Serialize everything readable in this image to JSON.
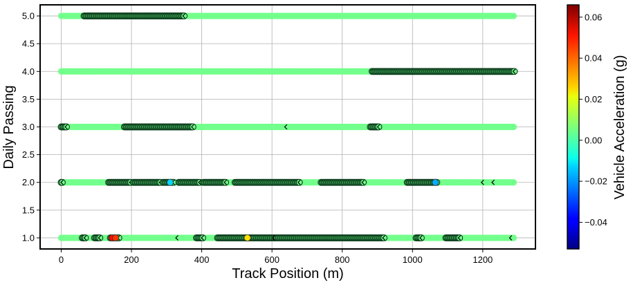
{
  "chart_data": {
    "type": "scatter",
    "xlabel": "Track Position (m)",
    "ylabel": "Daily Passing",
    "xlim": [
      -60,
      1350
    ],
    "ylim": [
      0.8,
      5.2
    ],
    "x_ticks": [
      0,
      200,
      400,
      600,
      800,
      1000,
      1200
    ],
    "y_ticks": [
      1.0,
      1.5,
      2.0,
      2.5,
      3.0,
      3.5,
      4.0,
      4.5,
      5.0
    ],
    "x_tick_labels": [
      "0",
      "200",
      "400",
      "600",
      "800",
      "1000",
      "1200"
    ],
    "y_tick_labels": [
      "1.0",
      "1.5",
      "2.0",
      "2.5",
      "3.0",
      "3.5",
      "4.0",
      "4.5",
      "5.0"
    ],
    "grid": true,
    "x_range": [
      0,
      1290
    ],
    "base_acceleration": 0.005,
    "colorbar": {
      "label": "Vehicle Acceleration (g)",
      "colormap": "jet",
      "range": [
        -0.053,
        0.066
      ],
      "ticks": [
        -0.04,
        -0.02,
        0.0,
        0.02,
        0.04,
        0.06
      ],
      "tick_labels": [
        "−0.04",
        "−0.02",
        "0.00",
        "0.02",
        "0.04",
        "0.06"
      ]
    },
    "series": [
      {
        "y": 5.0,
        "dense_segments": [
          [
            65,
            350
          ]
        ],
        "markers": [],
        "highlights": []
      },
      {
        "y": 4.0,
        "dense_segments": [
          [
            885,
            1290
          ]
        ],
        "markers": [],
        "highlights": []
      },
      {
        "y": 3.0,
        "dense_segments": [
          [
            0,
            15
          ],
          [
            180,
            375
          ],
          [
            880,
            905
          ]
        ],
        "markers": [
          640
        ],
        "highlights": []
      },
      {
        "y": 2.0,
        "dense_segments": [
          [
            0,
            5
          ],
          [
            135,
            200
          ],
          [
            205,
            285
          ],
          [
            290,
            320
          ],
          [
            335,
            395
          ],
          [
            405,
            470
          ],
          [
            495,
            680
          ],
          [
            740,
            860
          ],
          [
            985,
            1070
          ]
        ],
        "markers": [
          1200,
          1230
        ],
        "highlights": [
          {
            "x": 310,
            "acc": -0.013
          },
          {
            "x": 1065,
            "acc": -0.018
          }
        ]
      },
      {
        "y": 1.0,
        "dense_segments": [
          [
            60,
            70
          ],
          [
            95,
            110
          ],
          [
            140,
            165
          ],
          [
            385,
            405
          ],
          [
            445,
            920
          ],
          [
            1010,
            1025
          ],
          [
            1095,
            1135
          ]
        ],
        "markers": [
          330,
          605,
          1280
        ],
        "highlights": [
          {
            "x": 145,
            "acc": 0.05
          },
          {
            "x": 155,
            "acc": 0.045
          },
          {
            "x": 530,
            "acc": 0.025
          }
        ]
      }
    ]
  }
}
